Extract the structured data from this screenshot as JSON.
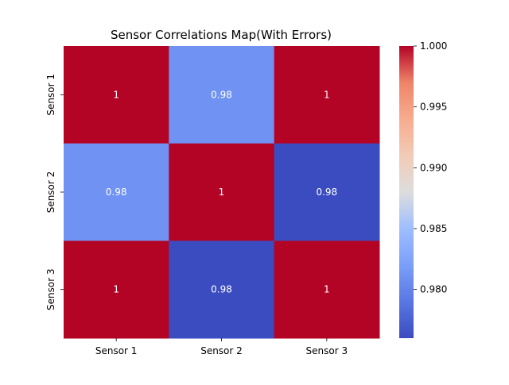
{
  "chart_data": {
    "type": "heatmap",
    "title": "Sensor Correlations Map(With Errors)",
    "xlabel": "",
    "ylabel": "",
    "x_categories": [
      "Sensor 1",
      "Sensor 2",
      "Sensor 3"
    ],
    "y_categories": [
      "Sensor 1",
      "Sensor 2",
      "Sensor 3"
    ],
    "values": [
      [
        1.0,
        0.981,
        1.0
      ],
      [
        0.981,
        1.0,
        0.976
      ],
      [
        1.0,
        0.976,
        1.0
      ]
    ],
    "cell_labels": [
      [
        "1",
        "0.98",
        "1"
      ],
      [
        "0.98",
        "1",
        "0.98"
      ],
      [
        "1",
        "0.98",
        "1"
      ]
    ],
    "colormap": "coolwarm",
    "vmin": 0.976,
    "vmax": 1.0,
    "colorbar": {
      "ticks": [
        0.98,
        0.985,
        0.99,
        0.995,
        1.0
      ],
      "tick_labels": [
        "0.980",
        "0.985",
        "0.990",
        "0.995",
        "1.000"
      ],
      "placement": "right"
    },
    "grid": false,
    "legend": "none"
  }
}
